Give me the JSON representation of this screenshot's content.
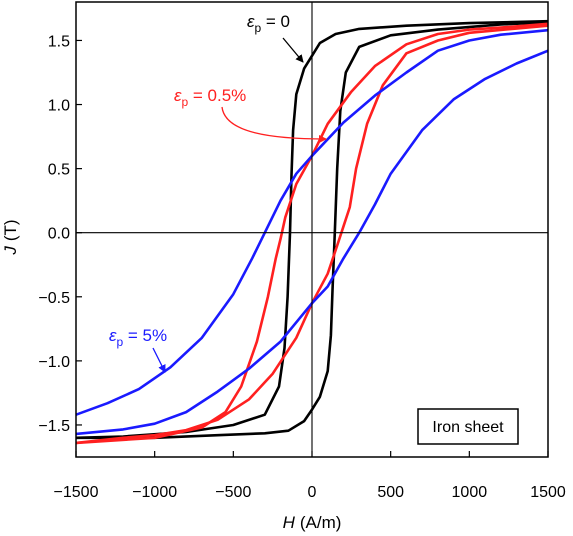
{
  "chart_data": {
    "type": "line",
    "xlabel_var": "H",
    "xlabel_unit": "(A/m)",
    "ylabel_var": "J",
    "ylabel_unit": "(T)",
    "xlim": [
      -1500,
      1500
    ],
    "ylim": [
      -1.75,
      1.8
    ],
    "xticks": [
      -1500,
      -1000,
      -500,
      0,
      500,
      1000,
      1500
    ],
    "xtick_labels": [
      "−1500",
      "−1000",
      "−500",
      "0",
      "500",
      "1000",
      "1500"
    ],
    "yticks": [
      -1.5,
      -1.0,
      -0.5,
      0.0,
      0.5,
      1.0,
      1.5
    ],
    "ytick_labels": [
      "−1.5",
      "−1.0",
      "−0.5",
      "0.0",
      "0.5",
      "1.0",
      "1.5"
    ],
    "grid": false,
    "zero_lines": true,
    "annotations": {
      "eps0": {
        "sym": "ε",
        "sub": "p",
        "rest": " = 0",
        "color": "#000000"
      },
      "eps05": {
        "sym": "ε",
        "sub": "p",
        "rest": " = 0.5%",
        "color": "#ff2020"
      },
      "eps5": {
        "sym": "ε",
        "sub": "p",
        "rest": " = 5%",
        "color": "#1a1aff"
      }
    },
    "box_label": "Iron sheet",
    "series": [
      {
        "key": "eps0",
        "color": "#000000",
        "upper": [
          [
            1500,
            1.65
          ],
          [
            1000,
            1.635
          ],
          [
            600,
            1.615
          ],
          [
            300,
            1.59
          ],
          [
            150,
            1.55
          ],
          [
            50,
            1.48
          ],
          [
            0,
            1.38
          ],
          [
            -50,
            1.28
          ],
          [
            -100,
            1.08
          ],
          [
            -120,
            0.8
          ],
          [
            -130,
            0.45
          ],
          [
            -140,
            0.0
          ],
          [
            -155,
            -0.5
          ],
          [
            -175,
            -0.9
          ],
          [
            -210,
            -1.2
          ],
          [
            -300,
            -1.42
          ],
          [
            -500,
            -1.5
          ],
          [
            -800,
            -1.555
          ],
          [
            -1200,
            -1.59
          ],
          [
            -1500,
            -1.6
          ]
        ],
        "lower": [
          [
            -1500,
            -1.6
          ],
          [
            -1000,
            -1.6
          ],
          [
            -600,
            -1.58
          ],
          [
            -300,
            -1.565
          ],
          [
            -150,
            -1.545
          ],
          [
            -50,
            -1.47
          ],
          [
            0,
            -1.38
          ],
          [
            50,
            -1.28
          ],
          [
            100,
            -1.08
          ],
          [
            120,
            -0.8
          ],
          [
            130,
            -0.45
          ],
          [
            145,
            0.0
          ],
          [
            160,
            0.5
          ],
          [
            180,
            0.95
          ],
          [
            215,
            1.25
          ],
          [
            300,
            1.45
          ],
          [
            500,
            1.54
          ],
          [
            800,
            1.585
          ],
          [
            1200,
            1.625
          ],
          [
            1500,
            1.64
          ]
        ]
      },
      {
        "key": "eps05",
        "color": "#ff2020",
        "upper": [
          [
            1500,
            1.63
          ],
          [
            1200,
            1.6
          ],
          [
            1000,
            1.585
          ],
          [
            800,
            1.55
          ],
          [
            600,
            1.47
          ],
          [
            400,
            1.3
          ],
          [
            250,
            1.1
          ],
          [
            100,
            0.85
          ],
          [
            0,
            0.6
          ],
          [
            -100,
            0.38
          ],
          [
            -170,
            0.12
          ],
          [
            -200,
            -0.05
          ],
          [
            -230,
            -0.2
          ],
          [
            -280,
            -0.5
          ],
          [
            -350,
            -0.85
          ],
          [
            -450,
            -1.2
          ],
          [
            -550,
            -1.4
          ],
          [
            -700,
            -1.52
          ],
          [
            -1000,
            -1.6
          ],
          [
            -1500,
            -1.64
          ]
        ],
        "lower": [
          [
            -1500,
            -1.64
          ],
          [
            -1200,
            -1.6
          ],
          [
            -1000,
            -1.58
          ],
          [
            -800,
            -1.54
          ],
          [
            -600,
            -1.46
          ],
          [
            -400,
            -1.3
          ],
          [
            -250,
            -1.1
          ],
          [
            -100,
            -0.82
          ],
          [
            0,
            -0.55
          ],
          [
            100,
            -0.32
          ],
          [
            160,
            -0.1
          ],
          [
            200,
            0.05
          ],
          [
            240,
            0.2
          ],
          [
            280,
            0.5
          ],
          [
            350,
            0.85
          ],
          [
            450,
            1.15
          ],
          [
            600,
            1.4
          ],
          [
            800,
            1.5
          ],
          [
            1000,
            1.56
          ],
          [
            1500,
            1.615
          ]
        ]
      },
      {
        "key": "eps5",
        "color": "#1a1aff",
        "upper": [
          [
            1500,
            1.58
          ],
          [
            1200,
            1.545
          ],
          [
            1000,
            1.5
          ],
          [
            800,
            1.42
          ],
          [
            600,
            1.25
          ],
          [
            400,
            1.07
          ],
          [
            200,
            0.86
          ],
          [
            0,
            0.6
          ],
          [
            -100,
            0.46
          ],
          [
            -200,
            0.25
          ],
          [
            -300,
            0.0
          ],
          [
            -380,
            -0.2
          ],
          [
            -500,
            -0.48
          ],
          [
            -700,
            -0.82
          ],
          [
            -900,
            -1.05
          ],
          [
            -1100,
            -1.22
          ],
          [
            -1300,
            -1.33
          ],
          [
            -1500,
            -1.42
          ]
        ],
        "lower": [
          [
            -1500,
            -1.57
          ],
          [
            -1200,
            -1.535
          ],
          [
            -1000,
            -1.49
          ],
          [
            -800,
            -1.4
          ],
          [
            -600,
            -1.24
          ],
          [
            -400,
            -1.06
          ],
          [
            -200,
            -0.85
          ],
          [
            0,
            -0.55
          ],
          [
            100,
            -0.42
          ],
          [
            200,
            -0.2
          ],
          [
            300,
            0.0
          ],
          [
            400,
            0.22
          ],
          [
            500,
            0.46
          ],
          [
            700,
            0.8
          ],
          [
            900,
            1.04
          ],
          [
            1100,
            1.2
          ],
          [
            1300,
            1.32
          ],
          [
            1500,
            1.42
          ]
        ]
      }
    ]
  }
}
